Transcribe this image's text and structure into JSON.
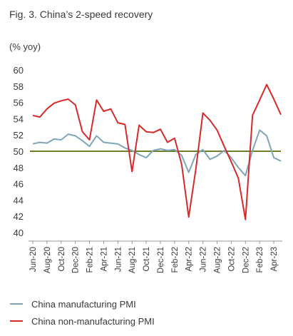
{
  "chart_data": {
    "type": "line",
    "title": "Fig. 3. China’s 2-speed recovery",
    "ylabel": "(% yoy)",
    "xlabel": "",
    "ylim": [
      40,
      60
    ],
    "yticks": [
      40,
      42,
      44,
      46,
      48,
      50,
      52,
      54,
      56,
      58,
      60
    ],
    "grid": false,
    "legend_position": "bottom",
    "reference_line": {
      "value": 50,
      "color": "#6b7f2a"
    },
    "x_tick_labels": [
      "Jun-20",
      "Aug-20",
      "Oct-20",
      "Dec-20",
      "Feb-21",
      "Apr-21",
      "Jun-21",
      "Aug-21",
      "Oct-21",
      "Dec-21",
      "Feb-22",
      "Apr-22",
      "Jun-22",
      "Aug-22",
      "Oct-22",
      "Dec-22",
      "Feb-23",
      "Apr-23"
    ],
    "x": [
      "Jun-20",
      "Jul-20",
      "Aug-20",
      "Sep-20",
      "Oct-20",
      "Nov-20",
      "Dec-20",
      "Jan-21",
      "Feb-21",
      "Mar-21",
      "Apr-21",
      "May-21",
      "Jun-21",
      "Jul-21",
      "Aug-21",
      "Sep-21",
      "Oct-21",
      "Nov-21",
      "Dec-21",
      "Jan-22",
      "Feb-22",
      "Mar-22",
      "Apr-22",
      "May-22",
      "Jun-22",
      "Jul-22",
      "Aug-22",
      "Sep-22",
      "Oct-22",
      "Nov-22",
      "Dec-22",
      "Jan-23",
      "Feb-23",
      "Mar-23",
      "Apr-23",
      "May-23"
    ],
    "series": [
      {
        "name": "China manufacturing PMI",
        "color": "#7ea6b8",
        "values": [
          50.9,
          51.1,
          51.0,
          51.5,
          51.4,
          52.1,
          51.9,
          51.3,
          50.6,
          51.9,
          51.1,
          51.0,
          50.9,
          50.4,
          50.1,
          49.6,
          49.2,
          50.1,
          50.3,
          50.1,
          50.2,
          49.5,
          47.4,
          49.6,
          50.2,
          49.0,
          49.4,
          50.1,
          49.2,
          48.0,
          47.0,
          50.1,
          52.6,
          51.9,
          49.2,
          48.8
        ]
      },
      {
        "name": "China non-manufacturing PMI",
        "color": "#d62a2a",
        "values": [
          54.4,
          54.2,
          55.2,
          55.9,
          56.2,
          56.4,
          55.7,
          52.4,
          51.4,
          56.3,
          54.9,
          55.2,
          53.5,
          53.3,
          47.5,
          53.2,
          52.4,
          52.3,
          52.7,
          51.1,
          51.6,
          48.4,
          41.9,
          47.8,
          54.7,
          53.8,
          52.6,
          50.6,
          48.7,
          46.7,
          41.6,
          54.4,
          56.3,
          58.2,
          56.4,
          54.5
        ]
      }
    ]
  }
}
